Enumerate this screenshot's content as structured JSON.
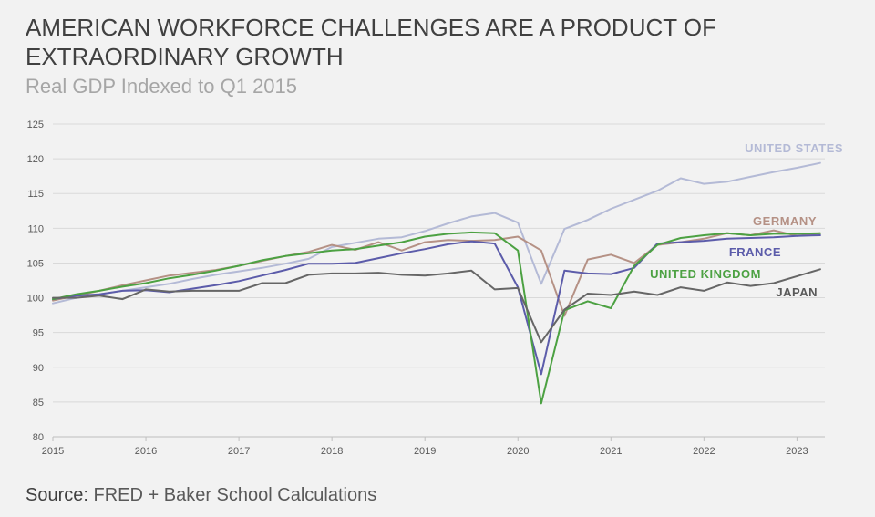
{
  "title": "AMERICAN WORKFORCE CHALLENGES ARE A PRODUCT OF EXTRAORDINARY GROWTH",
  "subtitle": "Real GDP Indexed to Q1 2015",
  "source_lead": "Source:",
  "source_text": "FRED + Baker School Calculations",
  "chart_data": {
    "type": "line",
    "ylim": [
      80,
      125
    ],
    "y_ticks": [
      "80",
      "85",
      "90",
      "95",
      "100",
      "105",
      "110",
      "115",
      "120",
      "125"
    ],
    "x_tick_labels": [
      "2015",
      "2016",
      "2017",
      "2018",
      "2019",
      "2020",
      "2021",
      "2022",
      "2023"
    ],
    "x_tick_times": [
      2015,
      2016,
      2017,
      2018,
      2019,
      2020,
      2021,
      2022,
      2023
    ],
    "x_range": [
      2015,
      2023.3
    ],
    "grid": true,
    "x": [
      2015,
      2015.25,
      2015.5,
      2015.75,
      2016,
      2016.25,
      2016.5,
      2016.75,
      2017,
      2017.25,
      2017.5,
      2017.75,
      2018,
      2018.25,
      2018.5,
      2018.75,
      2019,
      2019.25,
      2019.5,
      2019.75,
      2020,
      2020.25,
      2020.5,
      2020.75,
      2021,
      2021.25,
      2021.5,
      2021.75,
      2022,
      2022.25,
      2022.5,
      2022.75,
      2023,
      2023.25
    ],
    "series": [
      {
        "name": "UNITED STATES",
        "color": "#b4bad6",
        "values": [
          99.2,
          100.0,
          100.5,
          101.0,
          101.5,
          102.0,
          102.7,
          103.3,
          103.8,
          104.3,
          104.9,
          105.6,
          107.3,
          107.9,
          108.5,
          108.7,
          109.6,
          110.7,
          111.7,
          112.2,
          110.8,
          102.0,
          109.9,
          111.2,
          112.8,
          114.1,
          115.4,
          117.2,
          116.4,
          116.7,
          117.4,
          118.1,
          118.7,
          119.4
        ]
      },
      {
        "name": "GERMANY",
        "color": "#b59185",
        "values": [
          99.6,
          100.3,
          101.0,
          101.8,
          102.5,
          103.2,
          103.6,
          104.0,
          104.6,
          105.3,
          106.0,
          106.6,
          107.6,
          106.9,
          108.0,
          106.8,
          108.0,
          108.3,
          108.2,
          108.3,
          108.8,
          106.8,
          97.4,
          105.5,
          106.2,
          105.0,
          107.6,
          108.0,
          108.5,
          109.3,
          109.0,
          109.7,
          108.9,
          109.3
        ]
      },
      {
        "name": "FRANCE",
        "color": "#5c5caa",
        "values": [
          99.8,
          100.3,
          100.5,
          101.0,
          101.1,
          100.8,
          101.3,
          101.8,
          102.4,
          103.2,
          104.0,
          104.9,
          104.9,
          105.0,
          105.7,
          106.4,
          107.0,
          107.7,
          108.1,
          107.8,
          101.5,
          89.0,
          103.9,
          103.5,
          103.4,
          104.3,
          107.8,
          108.0,
          108.2,
          108.5,
          108.6,
          108.7,
          108.9,
          109.0
        ]
      },
      {
        "name": "UNITED KINGDOM",
        "color": "#4ca142",
        "values": [
          99.8,
          100.5,
          101.0,
          101.6,
          102.1,
          102.8,
          103.3,
          103.9,
          104.6,
          105.4,
          106.0,
          106.4,
          106.8,
          107.0,
          107.5,
          108.0,
          108.8,
          109.2,
          109.4,
          109.3,
          106.8,
          84.8,
          98.2,
          99.5,
          98.5,
          104.6,
          107.6,
          108.6,
          109.0,
          109.3,
          109.0,
          109.2,
          109.2,
          109.3
        ]
      },
      {
        "name": "JAPAN",
        "color": "#666666",
        "values": [
          100.0,
          100.0,
          100.3,
          99.8,
          101.2,
          100.9,
          101.0,
          101.0,
          101.0,
          102.1,
          102.1,
          103.3,
          103.5,
          103.5,
          103.6,
          103.3,
          103.2,
          103.5,
          103.9,
          101.2,
          101.4,
          93.6,
          98.3,
          100.6,
          100.4,
          100.9,
          100.4,
          101.5,
          101.0,
          102.2,
          101.7,
          102.1,
          103.1,
          104.1
        ]
      }
    ],
    "labels": [
      "UNITED STATES",
      "GERMANY",
      "FRANCE",
      "UNITED KINGDOM",
      "JAPAN"
    ]
  }
}
